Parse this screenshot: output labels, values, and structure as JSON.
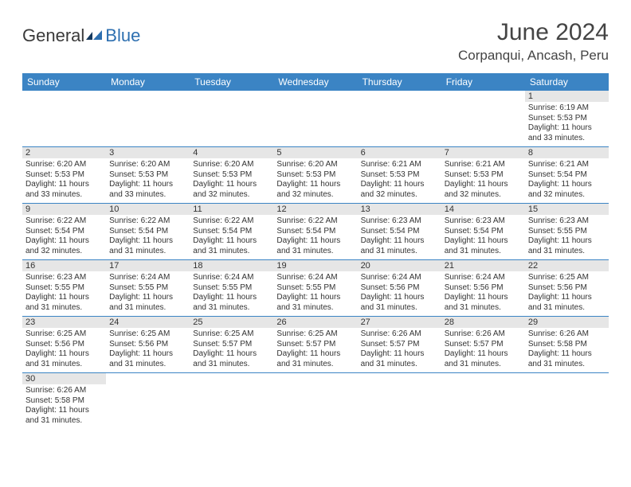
{
  "logo": {
    "general": "General",
    "blue": "Blue"
  },
  "title": "June 2024",
  "location": "Corpanqui, Ancash, Peru",
  "colors": {
    "header_bg": "#3b84c4",
    "header_text": "#ffffff",
    "daynum_bg": "#e6e6e6",
    "rule": "#3b84c4",
    "text": "#333333",
    "logo_blue": "#2d6fb0"
  },
  "weekdays": [
    "Sunday",
    "Monday",
    "Tuesday",
    "Wednesday",
    "Thursday",
    "Friday",
    "Saturday"
  ],
  "weeks": [
    [
      null,
      null,
      null,
      null,
      null,
      null,
      {
        "n": "1",
        "sunrise": "6:19 AM",
        "sunset": "5:53 PM",
        "dl_h": 11,
        "dl_m": 33
      }
    ],
    [
      {
        "n": "2",
        "sunrise": "6:20 AM",
        "sunset": "5:53 PM",
        "dl_h": 11,
        "dl_m": 33
      },
      {
        "n": "3",
        "sunrise": "6:20 AM",
        "sunset": "5:53 PM",
        "dl_h": 11,
        "dl_m": 33
      },
      {
        "n": "4",
        "sunrise": "6:20 AM",
        "sunset": "5:53 PM",
        "dl_h": 11,
        "dl_m": 32
      },
      {
        "n": "5",
        "sunrise": "6:20 AM",
        "sunset": "5:53 PM",
        "dl_h": 11,
        "dl_m": 32
      },
      {
        "n": "6",
        "sunrise": "6:21 AM",
        "sunset": "5:53 PM",
        "dl_h": 11,
        "dl_m": 32
      },
      {
        "n": "7",
        "sunrise": "6:21 AM",
        "sunset": "5:53 PM",
        "dl_h": 11,
        "dl_m": 32
      },
      {
        "n": "8",
        "sunrise": "6:21 AM",
        "sunset": "5:54 PM",
        "dl_h": 11,
        "dl_m": 32
      }
    ],
    [
      {
        "n": "9",
        "sunrise": "6:22 AM",
        "sunset": "5:54 PM",
        "dl_h": 11,
        "dl_m": 32
      },
      {
        "n": "10",
        "sunrise": "6:22 AM",
        "sunset": "5:54 PM",
        "dl_h": 11,
        "dl_m": 31
      },
      {
        "n": "11",
        "sunrise": "6:22 AM",
        "sunset": "5:54 PM",
        "dl_h": 11,
        "dl_m": 31
      },
      {
        "n": "12",
        "sunrise": "6:22 AM",
        "sunset": "5:54 PM",
        "dl_h": 11,
        "dl_m": 31
      },
      {
        "n": "13",
        "sunrise": "6:23 AM",
        "sunset": "5:54 PM",
        "dl_h": 11,
        "dl_m": 31
      },
      {
        "n": "14",
        "sunrise": "6:23 AM",
        "sunset": "5:54 PM",
        "dl_h": 11,
        "dl_m": 31
      },
      {
        "n": "15",
        "sunrise": "6:23 AM",
        "sunset": "5:55 PM",
        "dl_h": 11,
        "dl_m": 31
      }
    ],
    [
      {
        "n": "16",
        "sunrise": "6:23 AM",
        "sunset": "5:55 PM",
        "dl_h": 11,
        "dl_m": 31
      },
      {
        "n": "17",
        "sunrise": "6:24 AM",
        "sunset": "5:55 PM",
        "dl_h": 11,
        "dl_m": 31
      },
      {
        "n": "18",
        "sunrise": "6:24 AM",
        "sunset": "5:55 PM",
        "dl_h": 11,
        "dl_m": 31
      },
      {
        "n": "19",
        "sunrise": "6:24 AM",
        "sunset": "5:55 PM",
        "dl_h": 11,
        "dl_m": 31
      },
      {
        "n": "20",
        "sunrise": "6:24 AM",
        "sunset": "5:56 PM",
        "dl_h": 11,
        "dl_m": 31
      },
      {
        "n": "21",
        "sunrise": "6:24 AM",
        "sunset": "5:56 PM",
        "dl_h": 11,
        "dl_m": 31
      },
      {
        "n": "22",
        "sunrise": "6:25 AM",
        "sunset": "5:56 PM",
        "dl_h": 11,
        "dl_m": 31
      }
    ],
    [
      {
        "n": "23",
        "sunrise": "6:25 AM",
        "sunset": "5:56 PM",
        "dl_h": 11,
        "dl_m": 31
      },
      {
        "n": "24",
        "sunrise": "6:25 AM",
        "sunset": "5:56 PM",
        "dl_h": 11,
        "dl_m": 31
      },
      {
        "n": "25",
        "sunrise": "6:25 AM",
        "sunset": "5:57 PM",
        "dl_h": 11,
        "dl_m": 31
      },
      {
        "n": "26",
        "sunrise": "6:25 AM",
        "sunset": "5:57 PM",
        "dl_h": 11,
        "dl_m": 31
      },
      {
        "n": "27",
        "sunrise": "6:26 AM",
        "sunset": "5:57 PM",
        "dl_h": 11,
        "dl_m": 31
      },
      {
        "n": "28",
        "sunrise": "6:26 AM",
        "sunset": "5:57 PM",
        "dl_h": 11,
        "dl_m": 31
      },
      {
        "n": "29",
        "sunrise": "6:26 AM",
        "sunset": "5:58 PM",
        "dl_h": 11,
        "dl_m": 31
      }
    ],
    [
      {
        "n": "30",
        "sunrise": "6:26 AM",
        "sunset": "5:58 PM",
        "dl_h": 11,
        "dl_m": 31
      },
      null,
      null,
      null,
      null,
      null,
      null
    ]
  ],
  "labels": {
    "sunrise": "Sunrise:",
    "sunset": "Sunset:",
    "daylight_prefix": "Daylight:",
    "hours_word": "hours",
    "and_word": "and",
    "minutes_word": "minutes."
  }
}
